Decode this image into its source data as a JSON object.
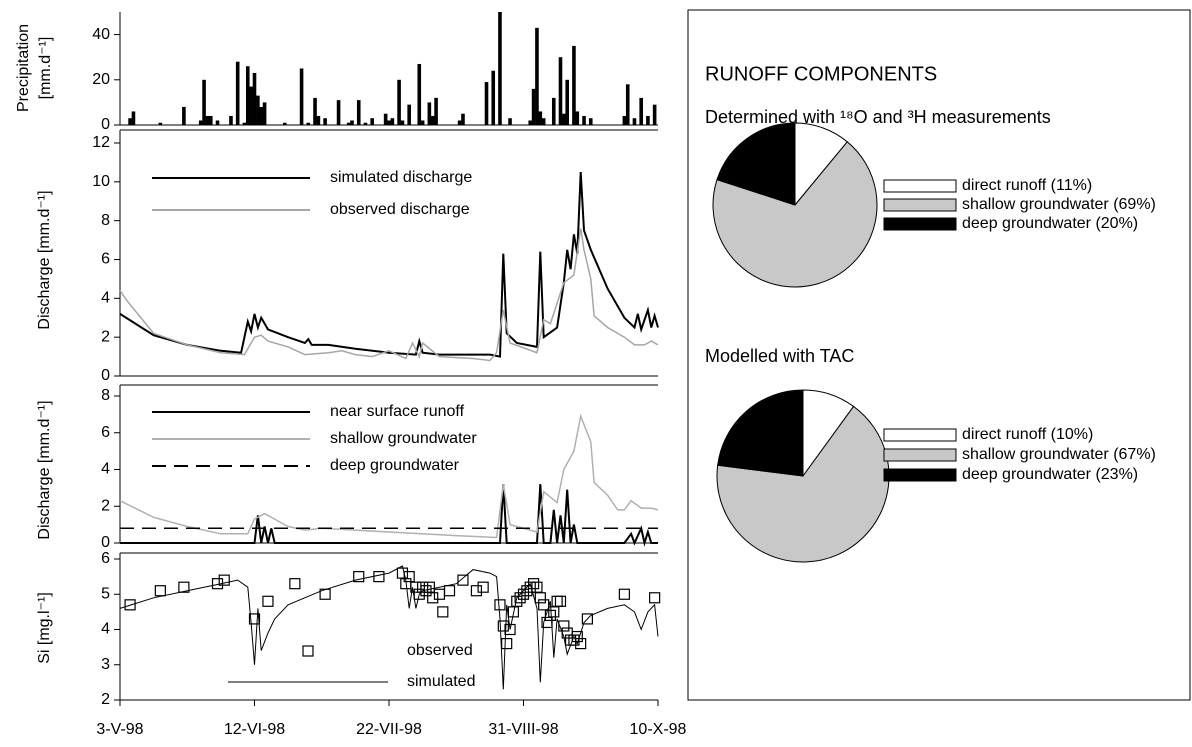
{
  "runoff_components_title": "RUNOFF COMPONENTS",
  "chart_data": [
    {
      "type": "bar",
      "ylabel": [
        "Precipitation",
        "[mm.d⁻¹]"
      ],
      "xlim": [
        0,
        160
      ],
      "ylim": [
        0,
        50
      ],
      "yticks": [
        0,
        20,
        40
      ],
      "color": "#000000",
      "x": [
        3,
        4,
        12,
        19,
        24,
        25,
        26,
        27,
        29,
        33,
        35,
        37,
        38,
        39,
        40,
        41,
        42,
        43,
        49,
        54,
        56,
        58,
        59,
        61,
        65,
        68,
        69,
        71,
        73,
        75,
        79,
        80,
        81,
        83,
        84,
        86,
        89,
        90,
        92,
        93,
        94,
        101,
        102,
        109,
        111,
        113,
        116,
        122,
        123,
        124,
        125,
        126,
        129,
        131,
        132,
        133,
        135,
        136,
        138,
        140,
        150,
        151,
        153,
        155,
        157,
        159
      ],
      "values": [
        3,
        6,
        1,
        8,
        2,
        20,
        4,
        4,
        2,
        4,
        28,
        1,
        26,
        17,
        23,
        13,
        8,
        10,
        1,
        25,
        1,
        12,
        4,
        3,
        11,
        1,
        2,
        11,
        1,
        3,
        5,
        2,
        3,
        20,
        2,
        9,
        27,
        2,
        10,
        4,
        12,
        2,
        5,
        19,
        24,
        50,
        3,
        2,
        16,
        43,
        6,
        3,
        12,
        30,
        5,
        20,
        35,
        6,
        4,
        3,
        4,
        18,
        3,
        12,
        4,
        9
      ]
    },
    {
      "type": "line",
      "ylabel": "Discharge [mm.d⁻¹]",
      "xlim": [
        0,
        160
      ],
      "ylim": [
        0,
        12
      ],
      "yticks": [
        0,
        2,
        4,
        6,
        8,
        10,
        12
      ],
      "series": [
        {
          "name": "simulated discharge",
          "color": "#000000",
          "x": [
            0,
            10,
            20,
            30,
            36,
            38,
            39,
            40,
            41,
            42,
            44,
            50,
            55,
            56,
            57,
            62,
            70,
            80,
            88,
            89,
            90,
            95,
            100,
            110,
            113,
            114,
            115,
            118,
            124,
            125,
            126,
            130,
            132,
            133,
            134,
            135,
            136,
            137,
            138,
            140,
            145,
            150,
            153,
            154,
            155,
            157,
            158,
            159,
            160
          ],
          "values": [
            3.2,
            2.1,
            1.6,
            1.3,
            1.2,
            2.8,
            2.3,
            3.2,
            2.5,
            3.0,
            2.4,
            2.0,
            1.7,
            1.9,
            1.6,
            1.6,
            1.4,
            1.2,
            1.1,
            1.8,
            1.2,
            1.1,
            1.1,
            1.1,
            1.0,
            6.3,
            2.2,
            1.7,
            1.5,
            6.4,
            2.0,
            2.5,
            4.8,
            6.5,
            5.5,
            7.3,
            6.3,
            10.5,
            7.5,
            6.5,
            4.5,
            3.0,
            2.5,
            3.2,
            2.4,
            3.4,
            2.5,
            3.1,
            2.5
          ]
        },
        {
          "name": "observed discharge",
          "color": "#a6a6a6",
          "x": [
            0,
            2,
            10,
            20,
            30,
            37,
            40,
            42,
            44,
            50,
            55,
            62,
            66,
            70,
            75,
            80,
            85,
            87,
            89,
            90,
            95,
            105,
            110,
            112,
            114,
            116,
            124,
            126,
            128,
            132,
            135,
            137,
            138,
            140,
            141,
            145,
            150,
            153,
            156,
            158,
            160
          ],
          "values": [
            4.4,
            3.9,
            2.2,
            1.6,
            1.2,
            1.1,
            2.0,
            2.1,
            1.8,
            1.5,
            1.1,
            1.2,
            1.3,
            1.1,
            1.0,
            1.3,
            0.9,
            1.7,
            1.0,
            1.7,
            1.0,
            0.9,
            0.8,
            1.2,
            3.4,
            1.7,
            1.2,
            2.9,
            2.7,
            4.8,
            5.2,
            7.6,
            6.5,
            5.0,
            3.1,
            2.5,
            2.0,
            1.6,
            1.6,
            1.8,
            1.6
          ]
        }
      ]
    },
    {
      "type": "line",
      "ylabel": "Discharge [mm.d⁻¹]",
      "xlim": [
        0,
        160
      ],
      "ylim": [
        0,
        8
      ],
      "yticks": [
        0,
        2,
        4,
        6,
        8
      ],
      "series": [
        {
          "name": "near surface runoff",
          "color": "#000000",
          "x": [
            0,
            40,
            41,
            42,
            43,
            44,
            45,
            46,
            113,
            114,
            115,
            124,
            125,
            126,
            128,
            129,
            130,
            131,
            132,
            133,
            134,
            135,
            136,
            150,
            152,
            153,
            155,
            156,
            157,
            158,
            160
          ],
          "values": [
            0,
            0,
            1.5,
            0,
            0.9,
            0,
            0.8,
            0,
            0,
            3.2,
            0,
            0,
            3.2,
            0,
            0,
            1.8,
            0,
            1.5,
            0,
            2.9,
            0,
            1.0,
            0,
            0,
            0.5,
            0,
            0.8,
            0,
            0.6,
            0,
            0
          ]
        },
        {
          "name": "shallow groundwater",
          "color": "#b0b0b0",
          "x": [
            0,
            10,
            20,
            30,
            38,
            40,
            43,
            47,
            50,
            55,
            60,
            80,
            100,
            112,
            114,
            116,
            124,
            126,
            130,
            132,
            135,
            137,
            140,
            141,
            145,
            148,
            150,
            152,
            155,
            158,
            160
          ],
          "values": [
            2.3,
            1.4,
            0.9,
            0.5,
            0.5,
            1.3,
            1.6,
            1.2,
            0.9,
            0.7,
            0.8,
            0.6,
            0.4,
            0.3,
            3.2,
            1.0,
            0.6,
            2.8,
            2.2,
            4.0,
            5.0,
            6.9,
            5.5,
            3.3,
            2.6,
            1.8,
            1.8,
            2.3,
            1.9,
            1.9,
            1.8
          ]
        },
        {
          "name": "deep groundwater",
          "color": "#000000",
          "dash": true,
          "x": [
            0,
            160
          ],
          "values": [
            0.8,
            0.8
          ]
        }
      ]
    },
    {
      "type": "line",
      "ylabel": "Si [mg.l⁻¹]",
      "xlim": [
        0,
        160
      ],
      "ylim": [
        2,
        6
      ],
      "yticks": [
        2,
        3,
        4,
        5,
        6
      ],
      "xticks": [
        {
          "value": 0,
          "label": "3-V-98"
        },
        {
          "value": 40,
          "label": "12-VI-98"
        },
        {
          "value": 80,
          "label": "22-VII-98"
        },
        {
          "value": 120,
          "label": "31-VIII-98"
        },
        {
          "value": 160,
          "label": "10-X-98"
        }
      ],
      "series": [
        {
          "name": "observed",
          "color": "#000000",
          "marker": "square",
          "x": [
            3,
            12,
            19,
            29,
            31,
            40,
            44,
            52,
            61,
            71,
            77,
            84,
            85,
            86,
            88,
            89,
            90,
            91,
            92,
            93,
            95,
            96,
            98,
            102,
            106,
            108,
            113,
            114,
            115,
            116,
            117,
            118,
            119,
            120,
            121,
            122,
            123,
            124,
            125,
            126,
            127,
            128,
            129,
            130,
            131,
            132,
            133,
            134,
            135,
            136,
            137,
            139,
            150,
            159
          ],
          "values": [
            4.7,
            5.1,
            5.2,
            5.3,
            5.4,
            4.3,
            4.8,
            5.3,
            5.0,
            5.5,
            5.5,
            5.6,
            5.3,
            5.5,
            5.2,
            5.0,
            5.2,
            5.1,
            5.2,
            4.9,
            5.0,
            4.5,
            5.1,
            5.4,
            5.1,
            5.2,
            4.7,
            4.1,
            3.6,
            4.0,
            4.5,
            4.8,
            4.9,
            5.0,
            5.1,
            5.2,
            5.3,
            5.2,
            4.9,
            4.7,
            4.2,
            4.4,
            4.5,
            4.8,
            4.8,
            4.1,
            3.9,
            3.7,
            3.7,
            3.8,
            3.6,
            4.3,
            5.0,
            4.9
          ]
        },
        {
          "name": "simulated",
          "color": "#000000",
          "x": [
            0,
            10,
            20,
            30,
            35,
            38,
            39,
            40,
            41,
            42,
            44,
            46,
            50,
            60,
            70,
            80,
            84,
            85,
            86,
            87,
            88,
            89,
            90,
            100,
            105,
            110,
            112,
            113,
            114,
            115,
            116,
            118,
            122,
            124,
            125,
            126,
            128,
            129,
            130,
            132,
            133,
            135,
            136,
            138,
            140,
            145,
            150,
            153,
            155,
            157,
            159,
            160
          ],
          "values": [
            4.6,
            4.9,
            5.1,
            5.3,
            5.4,
            5.2,
            4.2,
            3.0,
            4.6,
            3.4,
            3.9,
            4.3,
            4.7,
            5.1,
            5.4,
            5.6,
            5.8,
            5.4,
            4.6,
            5.2,
            4.6,
            5.0,
            5.1,
            5.3,
            5.7,
            5.6,
            5.5,
            4.3,
            2.3,
            4.7,
            4.0,
            4.9,
            5.3,
            4.6,
            2.5,
            4.2,
            4.8,
            3.2,
            4.3,
            3.8,
            3.3,
            3.8,
            3.6,
            4.2,
            4.4,
            4.6,
            4.7,
            4.5,
            4.0,
            4.5,
            4.7,
            3.8
          ]
        }
      ]
    },
    {
      "type": "pie",
      "title": "Determined with ¹⁸O and ³H measurements",
      "categories": [
        "direct runoff",
        "shallow groundwater",
        "deep groundwater"
      ],
      "values": [
        11,
        69,
        20
      ],
      "value_labels": [
        "(11%)",
        "(69%)",
        "(20%)"
      ],
      "colors": [
        "#ffffff",
        "#c8c8c8",
        "#000000"
      ]
    },
    {
      "type": "pie",
      "title": "Modelled with TAC",
      "categories": [
        "direct runoff",
        "shallow groundwater",
        "deep groundwater"
      ],
      "values": [
        10,
        67,
        23
      ],
      "value_labels": [
        "(10%)",
        "(67%)",
        "(23%)"
      ],
      "colors": [
        "#ffffff",
        "#c8c8c8",
        "#000000"
      ]
    }
  ]
}
